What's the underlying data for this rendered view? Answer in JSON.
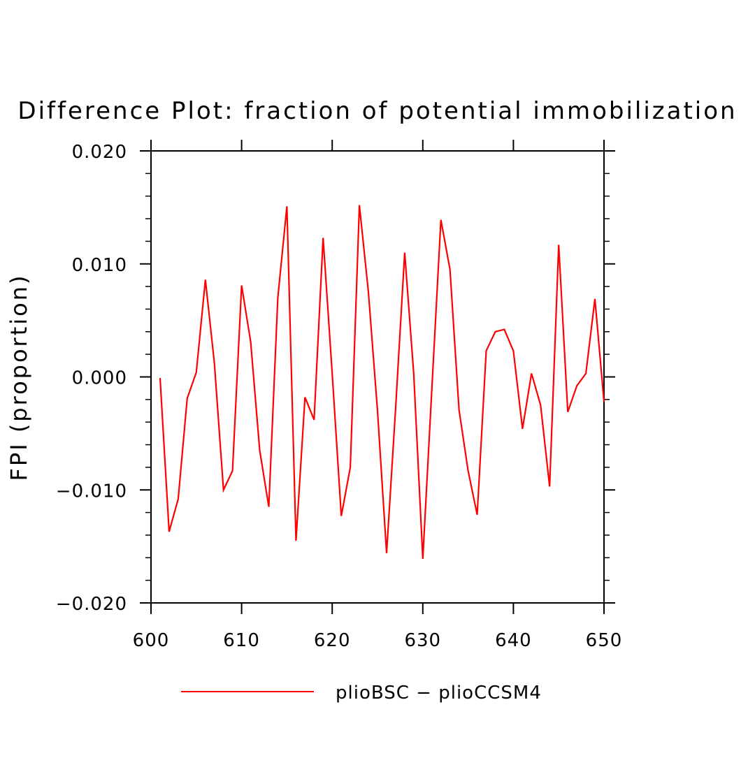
{
  "chart_data": {
    "type": "line",
    "title": "Difference Plot: fraction of potential immobilization",
    "xlabel": "",
    "ylabel": "FPI  (proportion)",
    "xlim": [
      600,
      650
    ],
    "ylim": [
      -0.02,
      0.02
    ],
    "xticks": [
      600,
      610,
      620,
      630,
      640,
      650
    ],
    "xtick_labels": [
      "600",
      "610",
      "620",
      "630",
      "640",
      "650"
    ],
    "yticks": [
      -0.02,
      -0.01,
      0.0,
      0.01,
      0.02
    ],
    "ytick_labels": [
      "−0.020",
      "−0.010",
      "0.000",
      "0.010",
      "0.020"
    ],
    "grid": false,
    "legend_position": "bottom",
    "series": [
      {
        "name": "plioBSC − plioCCSM4",
        "color": "#ff0000",
        "x": [
          601,
          602,
          603,
          604,
          605,
          606,
          607,
          608,
          609,
          610,
          611,
          612,
          613,
          614,
          615,
          616,
          617,
          618,
          619,
          620,
          621,
          622,
          623,
          624,
          625,
          626,
          627,
          628,
          629,
          630,
          631,
          632,
          633,
          634,
          635,
          636,
          637,
          638,
          639,
          640,
          641,
          642,
          643,
          644,
          645,
          646,
          647,
          648,
          649,
          650
        ],
        "y": [
          -0.0001,
          -0.0137,
          -0.0108,
          -0.0019,
          0.0004,
          0.0086,
          0.0012,
          -0.01,
          -0.0083,
          0.0081,
          0.0031,
          -0.0065,
          -0.0115,
          0.007,
          0.0151,
          -0.0145,
          -0.0018,
          -0.0038,
          0.0123,
          0.0003,
          -0.0123,
          -0.008,
          0.0152,
          0.0075,
          -0.003,
          -0.0156,
          -0.0028,
          0.011,
          0.0003,
          -0.0161,
          -0.001,
          0.0139,
          0.0095,
          -0.0029,
          -0.0083,
          -0.0122,
          0.0023,
          0.004,
          0.0042,
          0.0023,
          -0.0046,
          0.0003,
          -0.0025,
          -0.0097,
          0.0117,
          -0.0031,
          -0.0008,
          0.0003,
          0.0069,
          -0.0022
        ]
      }
    ]
  }
}
